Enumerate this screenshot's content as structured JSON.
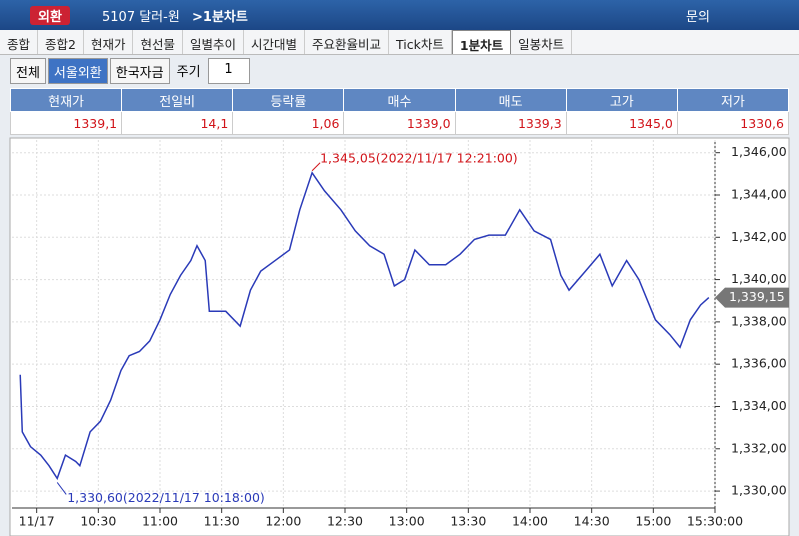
{
  "window": {
    "badge": "외환",
    "code": "5107 달러-원",
    "screen": ">1분차트",
    "help": "문의"
  },
  "tabs": [
    "종합",
    "종합2",
    "현재가",
    "현선물",
    "일별추이",
    "시간대별",
    "주요환율비교",
    "Tick차트",
    "1분차트",
    "일봉차트"
  ],
  "active_tab": 8,
  "toolbar": {
    "buttons": [
      "전체",
      "서울외환",
      "한국자금"
    ],
    "selected": 1,
    "period_label": "주기",
    "period_value": "1"
  },
  "quote": {
    "headers": [
      "현재가",
      "전일비",
      "등락률",
      "매수",
      "매도",
      "고가",
      "저가"
    ],
    "values": [
      "1339,1",
      "14,1",
      "1,06",
      "1339,0",
      "1339,3",
      "1345,0",
      "1330,6"
    ]
  },
  "chart_data": {
    "type": "line",
    "x": [
      592,
      593,
      597,
      602,
      606,
      610,
      614,
      619,
      621,
      626,
      631,
      636,
      641,
      645,
      650,
      655,
      660,
      665,
      670,
      675,
      678,
      682,
      684,
      692,
      699,
      704,
      709,
      716,
      723,
      728,
      734,
      740,
      748,
      755,
      762,
      769,
      774,
      779,
      784,
      791,
      799,
      806,
      813,
      820,
      828,
      835,
      842,
      850,
      855,
      859,
      867,
      874,
      880,
      887,
      893,
      901,
      908,
      913,
      918,
      923,
      927
    ],
    "series": [
      {
        "color": "#2a3ab8",
        "values": [
          1335.5,
          1332.8,
          1332.1,
          1331.7,
          1331.2,
          1330.6,
          1331.7,
          1331.4,
          1331.2,
          1332.8,
          1333.3,
          1334.3,
          1335.7,
          1336.4,
          1336.6,
          1337.1,
          1338.1,
          1339.3,
          1340.2,
          1340.9,
          1341.6,
          1340.9,
          1338.5,
          1338.5,
          1337.8,
          1339.5,
          1340.4,
          1340.9,
          1341.4,
          1343.3,
          1345.05,
          1344.2,
          1343.3,
          1342.3,
          1341.6,
          1341.2,
          1339.7,
          1340.0,
          1341.4,
          1340.7,
          1340.7,
          1341.2,
          1341.9,
          1342.1,
          1342.1,
          1343.3,
          1342.3,
          1341.9,
          1340.2,
          1339.5,
          1340.4,
          1341.2,
          1339.7,
          1340.9,
          1340.0,
          1338.1,
          1337.4,
          1336.8,
          1338.1,
          1338.8,
          1339.15
        ]
      }
    ],
    "xlim": [
      588,
      930
    ],
    "xticks": [
      {
        "value": 600,
        "label": "11/17"
      },
      {
        "value": 630,
        "label": "10:30"
      },
      {
        "value": 660,
        "label": "11:00"
      },
      {
        "value": 690,
        "label": "11:30"
      },
      {
        "value": 720,
        "label": "12:00"
      },
      {
        "value": 750,
        "label": "12:30"
      },
      {
        "value": 780,
        "label": "13:00"
      },
      {
        "value": 810,
        "label": "13:30"
      },
      {
        "value": 840,
        "label": "14:00"
      },
      {
        "value": 870,
        "label": "14:30"
      },
      {
        "value": 900,
        "label": "15:00"
      },
      {
        "value": 930,
        "label": "15:30:00"
      }
    ],
    "ylim": [
      1329.2,
      1346.6
    ],
    "yticks": [
      {
        "value": 1330,
        "label": "1,330,00"
      },
      {
        "value": 1332,
        "label": "1,332,00"
      },
      {
        "value": 1334,
        "label": "1,334,00"
      },
      {
        "value": 1336,
        "label": "1,336,00"
      },
      {
        "value": 1338,
        "label": "1,338,00"
      },
      {
        "value": 1340,
        "label": "1,340,00"
      },
      {
        "value": 1342,
        "label": "1,342,00"
      },
      {
        "value": 1344,
        "label": "1,344,00"
      },
      {
        "value": 1346,
        "label": "1,346,00"
      }
    ],
    "grid": true,
    "high_label": "1,345,05(2022/11/17 12:21:00)",
    "low_label": "1,330,60(2022/11/17 10:18:00)",
    "last_label": "1,339,15"
  }
}
